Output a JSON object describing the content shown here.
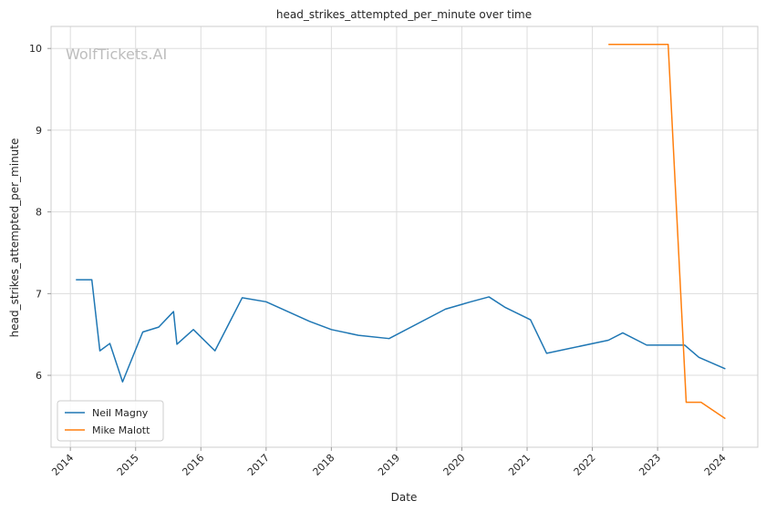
{
  "chart_data": {
    "type": "line",
    "title": "head_strikes_attempted_per_minute over time",
    "xlabel": "Date",
    "ylabel": "head_strikes_attempted_per_minute",
    "watermark": "WolfTickets.AI",
    "x_ticks": [
      "2014",
      "2015",
      "2016",
      "2017",
      "2018",
      "2019",
      "2020",
      "2021",
      "2022",
      "2023",
      "2024"
    ],
    "y_ticks": [
      6,
      7,
      8,
      9,
      10
    ],
    "xlim": [
      "2013-09-15",
      "2024-07-15"
    ],
    "ylim": [
      5.12,
      10.27
    ],
    "grid": true,
    "legend_position": "lower-left",
    "series": [
      {
        "name": "Neil Magny",
        "color": "#1f77b4",
        "points": [
          [
            "2014-02-01",
            7.17
          ],
          [
            "2014-05-01",
            7.17
          ],
          [
            "2014-06-15",
            6.3
          ],
          [
            "2014-08-10",
            6.39
          ],
          [
            "2014-10-20",
            5.92
          ],
          [
            "2015-02-10",
            6.53
          ],
          [
            "2015-05-10",
            6.59
          ],
          [
            "2015-08-01",
            6.78
          ],
          [
            "2015-08-20",
            6.38
          ],
          [
            "2015-11-20",
            6.56
          ],
          [
            "2016-03-20",
            6.3
          ],
          [
            "2016-08-20",
            6.95
          ],
          [
            "2017-01-01",
            6.9
          ],
          [
            "2017-09-01",
            6.66
          ],
          [
            "2018-01-01",
            6.56
          ],
          [
            "2018-06-01",
            6.49
          ],
          [
            "2018-11-20",
            6.45
          ],
          [
            "2019-10-01",
            6.81
          ],
          [
            "2020-02-20",
            6.9
          ],
          [
            "2020-06-01",
            6.96
          ],
          [
            "2020-09-01",
            6.83
          ],
          [
            "2021-01-20",
            6.68
          ],
          [
            "2021-04-20",
            6.27
          ],
          [
            "2022-04-01",
            6.43
          ],
          [
            "2022-06-20",
            6.52
          ],
          [
            "2022-11-01",
            6.37
          ],
          [
            "2023-06-01",
            6.37
          ],
          [
            "2023-08-20",
            6.22
          ],
          [
            "2024-01-15",
            6.08
          ]
        ]
      },
      {
        "name": "Mike Malott",
        "color": "#ff7f0e",
        "points": [
          [
            "2022-04-01",
            10.05
          ],
          [
            "2023-03-01",
            10.05
          ],
          [
            "2023-06-10",
            5.67
          ],
          [
            "2023-09-01",
            5.67
          ],
          [
            "2024-01-15",
            5.47
          ]
        ]
      }
    ]
  }
}
